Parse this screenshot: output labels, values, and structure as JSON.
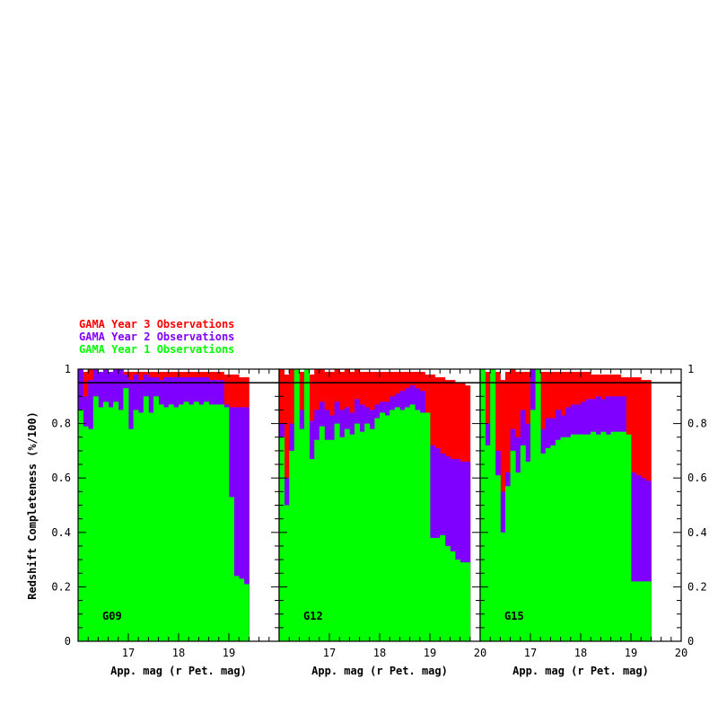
{
  "legend": [
    {
      "label": "GAMA Year 3 Observations",
      "color": "#ff0000"
    },
    {
      "label": "GAMA Year 2 Observations",
      "color": "#8000ff"
    },
    {
      "label": "GAMA Year 1 Observations",
      "color": "#00ff00"
    }
  ],
  "colors": {
    "year1": "#00ff00",
    "year2": "#8000ff",
    "year3": "#ff0000",
    "threshold_line": "#000000"
  },
  "ylabel": "Redshift Completeness (%/100)",
  "chart_data": [
    {
      "type": "bar",
      "name": "G09",
      "xlabel": "App. mag (r Pet. mag)",
      "ylabel": "Redshift Completeness (%/100)",
      "xlim": [
        16.0,
        20.0
      ],
      "ylim": [
        0,
        1
      ],
      "bin_width": 0.1,
      "xticks": [
        17,
        18,
        19
      ],
      "yticks": [
        0,
        0.2,
        0.4,
        0.6,
        0.8,
        1
      ],
      "threshold": 0.95,
      "x": [
        16.05,
        16.15,
        16.25,
        16.35,
        16.45,
        16.55,
        16.65,
        16.75,
        16.85,
        16.95,
        17.05,
        17.15,
        17.25,
        17.35,
        17.45,
        17.55,
        17.65,
        17.75,
        17.85,
        17.95,
        18.05,
        18.15,
        18.25,
        18.35,
        18.45,
        18.55,
        18.65,
        18.75,
        18.85,
        18.95,
        19.05,
        19.15,
        19.25,
        19.35
      ],
      "series": [
        {
          "name": "GAMA Year 1 Observations",
          "values": [
            0.85,
            0.79,
            0.78,
            0.9,
            0.86,
            0.88,
            0.86,
            0.88,
            0.85,
            0.93,
            0.78,
            0.85,
            0.84,
            0.9,
            0.84,
            0.9,
            0.87,
            0.86,
            0.87,
            0.86,
            0.87,
            0.88,
            0.87,
            0.88,
            0.87,
            0.88,
            0.87,
            0.87,
            0.87,
            0.86,
            0.53,
            0.24,
            0.23,
            0.21
          ]
        },
        {
          "name": "GAMA Year 2 Observations",
          "values": [
            1.0,
            0.9,
            0.96,
            1.0,
            0.99,
            1.0,
            0.99,
            1.0,
            1.0,
            0.98,
            0.96,
            0.98,
            0.96,
            0.98,
            0.97,
            0.97,
            0.96,
            0.97,
            0.97,
            0.97,
            0.97,
            0.97,
            0.97,
            0.97,
            0.97,
            0.97,
            0.96,
            0.96,
            0.96,
            0.87,
            0.86,
            0.86,
            0.86,
            0.86
          ]
        },
        {
          "name": "GAMA Year 3 Observations",
          "values": [
            1.0,
            0.99,
            1.0,
            1.0,
            0.99,
            1.0,
            0.99,
            1.0,
            1.0,
            0.99,
            0.99,
            0.99,
            0.99,
            0.99,
            0.99,
            0.99,
            0.99,
            0.99,
            0.99,
            0.99,
            0.99,
            0.99,
            0.99,
            0.99,
            0.99,
            0.99,
            0.99,
            0.99,
            0.99,
            0.98,
            0.98,
            0.98,
            0.97,
            0.97
          ]
        }
      ]
    },
    {
      "type": "bar",
      "name": "G12",
      "xlabel": "App. mag (r Pet. mag)",
      "ylabel": "",
      "xlim": [
        16.0,
        20.0
      ],
      "ylim": [
        0,
        1
      ],
      "bin_width": 0.1,
      "xticks": [
        17,
        18,
        19,
        20
      ],
      "yticks": [
        0,
        0.2,
        0.4,
        0.6,
        0.8,
        1
      ],
      "threshold": 0.95,
      "x": [
        16.05,
        16.15,
        16.25,
        16.35,
        16.45,
        16.55,
        16.65,
        16.75,
        16.85,
        16.95,
        17.05,
        17.15,
        17.25,
        17.35,
        17.45,
        17.55,
        17.65,
        17.75,
        17.85,
        17.95,
        18.05,
        18.15,
        18.25,
        18.35,
        18.45,
        18.55,
        18.65,
        18.75,
        18.85,
        18.95,
        19.05,
        19.15,
        19.25,
        19.35,
        19.45,
        19.55,
        19.65,
        19.75
      ],
      "series": [
        {
          "name": "GAMA Year 1 Observations",
          "values": [
            0.75,
            0.5,
            0.7,
            1.0,
            0.78,
            1.0,
            0.67,
            0.74,
            0.79,
            0.74,
            0.74,
            0.8,
            0.75,
            0.78,
            0.76,
            0.8,
            0.77,
            0.8,
            0.78,
            0.82,
            0.84,
            0.83,
            0.85,
            0.86,
            0.85,
            0.86,
            0.87,
            0.85,
            0.84,
            0.84,
            0.38,
            0.38,
            0.39,
            0.35,
            0.33,
            0.3,
            0.29,
            0.29
          ]
        },
        {
          "name": "GAMA Year 2 Observations",
          "values": [
            0.8,
            0.6,
            0.8,
            1.0,
            0.85,
            1.0,
            0.81,
            0.85,
            0.88,
            0.85,
            0.83,
            0.88,
            0.85,
            0.86,
            0.84,
            0.89,
            0.87,
            0.86,
            0.85,
            0.87,
            0.88,
            0.88,
            0.9,
            0.91,
            0.92,
            0.93,
            0.94,
            0.93,
            0.92,
            0.73,
            0.72,
            0.71,
            0.69,
            0.68,
            0.67,
            0.67,
            0.66,
            0.66
          ]
        },
        {
          "name": "GAMA Year 3 Observations",
          "values": [
            1.0,
            0.98,
            1.0,
            1.0,
            0.99,
            1.0,
            0.98,
            1.0,
            1.0,
            0.99,
            0.99,
            1.0,
            0.99,
            1.0,
            0.99,
            1.0,
            0.99,
            0.99,
            0.99,
            0.99,
            0.99,
            0.99,
            0.99,
            0.99,
            0.99,
            0.99,
            0.99,
            0.99,
            0.99,
            0.98,
            0.98,
            0.97,
            0.97,
            0.96,
            0.96,
            0.95,
            0.95,
            0.94
          ]
        }
      ]
    },
    {
      "type": "bar",
      "name": "G15",
      "xlabel": "App. mag (r Pet. mag)",
      "ylabel": "Redshift Completeness (%/100)",
      "xlim": [
        16.0,
        20.0
      ],
      "ylim": [
        0,
        1
      ],
      "bin_width": 0.1,
      "xticks": [
        17,
        18,
        19,
        20
      ],
      "yticks": [
        0,
        0.2,
        0.4,
        0.6,
        0.8,
        1
      ],
      "threshold": 0.95,
      "x": [
        16.05,
        16.15,
        16.25,
        16.35,
        16.45,
        16.55,
        16.65,
        16.75,
        16.85,
        16.95,
        17.05,
        17.15,
        17.25,
        17.35,
        17.45,
        17.55,
        17.65,
        17.75,
        17.85,
        17.95,
        18.05,
        18.15,
        18.25,
        18.35,
        18.45,
        18.55,
        18.65,
        18.75,
        18.85,
        18.95,
        19.05,
        19.15,
        19.25,
        19.35
      ],
      "series": [
        {
          "name": "GAMA Year 1 Observations",
          "values": [
            1.0,
            0.72,
            1.0,
            0.61,
            0.4,
            0.57,
            0.7,
            0.62,
            0.72,
            0.66,
            0.85,
            1.0,
            0.69,
            0.71,
            0.72,
            0.74,
            0.75,
            0.75,
            0.76,
            0.76,
            0.76,
            0.76,
            0.77,
            0.76,
            0.77,
            0.76,
            0.77,
            0.77,
            0.77,
            0.76,
            0.22,
            0.22,
            0.22,
            0.22
          ]
        },
        {
          "name": "GAMA Year 2 Observations",
          "values": [
            1.0,
            0.8,
            1.0,
            0.7,
            0.55,
            0.62,
            0.78,
            0.75,
            0.85,
            0.8,
            1.0,
            1.0,
            0.78,
            0.82,
            0.82,
            0.85,
            0.83,
            0.86,
            0.87,
            0.87,
            0.88,
            0.89,
            0.89,
            0.9,
            0.89,
            0.9,
            0.9,
            0.9,
            0.9,
            0.63,
            0.62,
            0.61,
            0.6,
            0.59
          ]
        },
        {
          "name": "GAMA Year 3 Observations",
          "values": [
            1.0,
            0.99,
            1.0,
            0.99,
            0.96,
            0.99,
            1.0,
            0.99,
            0.99,
            0.99,
            1.0,
            1.0,
            0.99,
            0.99,
            0.99,
            0.99,
            0.99,
            0.99,
            0.99,
            0.99,
            0.99,
            0.99,
            0.98,
            0.98,
            0.98,
            0.98,
            0.98,
            0.98,
            0.97,
            0.97,
            0.97,
            0.97,
            0.96,
            0.96
          ]
        }
      ]
    }
  ]
}
